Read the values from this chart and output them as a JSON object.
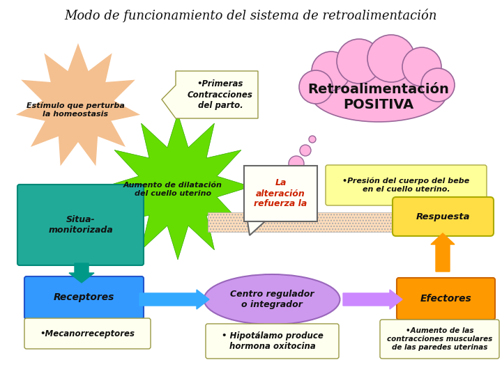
{
  "title": "Modo de funcionamiento del sistema de retroalimentación",
  "background_color": "#ffffff",
  "title_fontsize": 13,
  "elements": {
    "cloud_text": [
      "Retroalimentación",
      "POSITIVA"
    ],
    "cloud_color": "#ffb3de",
    "cloud_border": "#996699",
    "star_orange_text": [
      "Estímulo que perturba",
      "la homeostasis"
    ],
    "star_orange_color": "#f4c090",
    "star_green_text": [
      "Aumento de dilatación",
      "del cuello uterino"
    ],
    "star_green_color": "#66dd00",
    "callout_text": [
      "•Primeras",
      "Contracciones",
      "del parto."
    ],
    "callout_color": "#fffff0",
    "callout_border": "#999944",
    "alteration_text": [
      "La",
      "alteración",
      "refuerza la"
    ],
    "alteration_color": "#cc2200",
    "alteration_box_color": "#fffff8",
    "alteration_box_border": "#666666",
    "pressure_text": [
      "•Presión del cuerpo del bebe",
      "en el cuello uterino."
    ],
    "pressure_color": "#ffff99",
    "pressure_border": "#aaaa44",
    "situacion_text": [
      "Situa-",
      "monitorizada"
    ],
    "situacion_color": "#22aa99",
    "situacion_border": "#008877",
    "respuesta_text": "Respuesta",
    "respuesta_color": "#ffdd44",
    "respuesta_border": "#aaaa00",
    "receptores_text": "Receptores",
    "receptores_color": "#3399ff",
    "receptores_border": "#2255cc",
    "mecanorreceptores_text": "•Mecanorreceptores",
    "mecanorreceptores_color": "#fffff0",
    "mecanorreceptores_border": "#999944",
    "centro_text": [
      "Centro regulador",
      "o integrador"
    ],
    "centro_color": "#cc99ee",
    "centro_border": "#9966bb",
    "hipotalamo_text": [
      "• Hipotálamo produce",
      "hormona oxitocina"
    ],
    "hipotalamo_color": "#fffff0",
    "hipotalamo_border": "#999944",
    "efectores_text": "Efectores",
    "efectores_color": "#ff9900",
    "efectores_border": "#cc6600",
    "aumento_text": [
      "•Aumento de las",
      "contracciones musculares",
      "de las paredes uterinas"
    ],
    "aumento_color": "#fffff0",
    "aumento_border": "#999944",
    "arrow_teal": "#009988",
    "arrow_blue": "#33aaff",
    "arrow_purple": "#cc88ff",
    "arrow_orange": "#ff9900",
    "hatch_color": "#ffddbb",
    "dots_color": "#ee8866"
  }
}
